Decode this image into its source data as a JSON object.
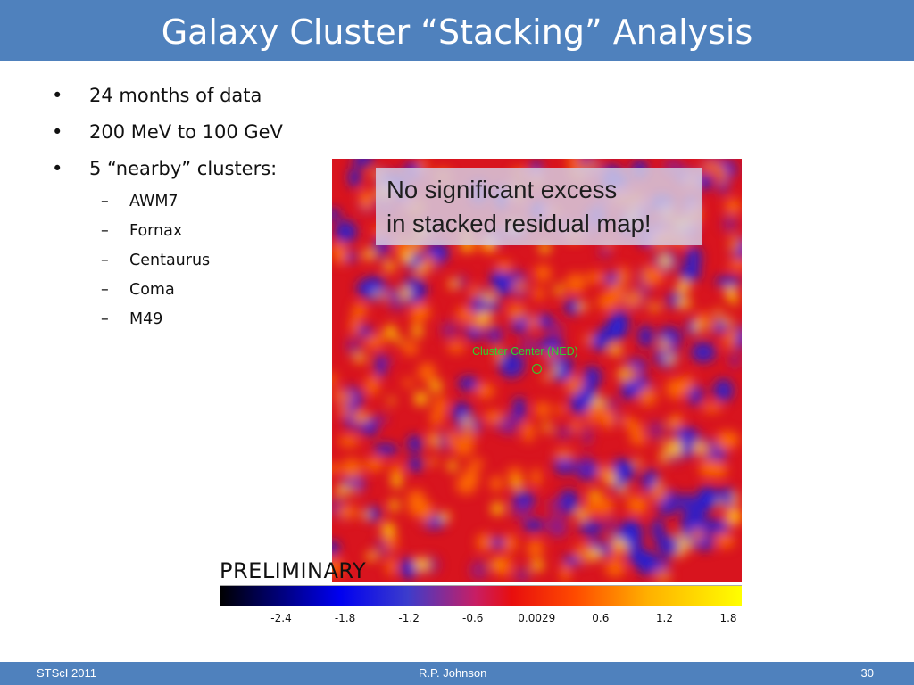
{
  "slide": {
    "title": "Galaxy Cluster “Stacking” Analysis",
    "bullets": [
      {
        "text": "24 months of data"
      },
      {
        "text": "200 MeV to 100 GeV"
      },
      {
        "text": "5 “nearby” clusters:"
      }
    ],
    "sub_bullets": [
      {
        "text": "AWM7"
      },
      {
        "text": "Fornax"
      },
      {
        "text": "Centaurus"
      },
      {
        "text": "Coma"
      },
      {
        "text": "M49"
      }
    ],
    "bullet_symbol": "•",
    "dash_symbol": "–"
  },
  "figure": {
    "annotation_line1": "No significant excess",
    "annotation_line2": "in stacked residual map!",
    "center_label": "Cluster Center (NED)",
    "watermark": "PRELIMINARY",
    "colorbar_ticks": [
      "-2.4",
      "-1.8",
      "-1.2",
      "-0.6",
      "0.0029",
      "0.6",
      "1.2",
      "1.8"
    ],
    "colors": {
      "map_base": "#d8141e",
      "low": "#2020d8",
      "high": "#ffcc00",
      "center_marker": "#2ed12e"
    }
  },
  "footer": {
    "left": "STScI 2011",
    "center": "R.P. Johnson",
    "right": "30"
  }
}
